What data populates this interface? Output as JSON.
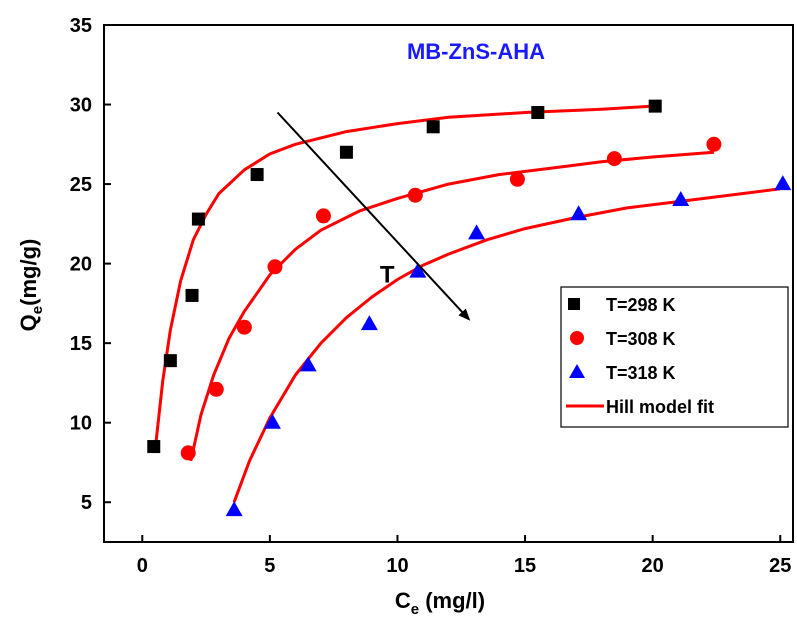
{
  "chart_data": {
    "type": "scatter",
    "title": "MB-ZnS-AHA",
    "title_color": "#1a1aff",
    "xlabel": "C",
    "xlabel_sub": "e",
    "xlabel_unit": " (mg/l)",
    "ylabel": "Q",
    "ylabel_sub": "e",
    "ylabel_unit": "(mg/g)",
    "xlim": [
      -1.5,
      25.5
    ],
    "ylim": [
      2.5,
      35
    ],
    "xticks": [
      0,
      5,
      10,
      15,
      20,
      25
    ],
    "yticks": [
      5,
      10,
      15,
      20,
      25,
      30,
      35
    ],
    "grid": false,
    "legend_position": "right",
    "series": [
      {
        "name": "T=298 K",
        "marker": "square",
        "color": "#000000",
        "x": [
          0.45,
          1.1,
          1.95,
          2.2,
          4.5,
          8.0,
          11.4,
          15.5,
          20.1
        ],
        "y": [
          8.5,
          13.9,
          18.0,
          22.8,
          25.6,
          27.0,
          28.6,
          29.5,
          29.9
        ]
      },
      {
        "name": "T=308 K",
        "marker": "circle",
        "color": "#ff0000",
        "x": [
          1.8,
          2.9,
          4.0,
          5.2,
          7.1,
          10.7,
          14.7,
          18.5,
          22.4
        ],
        "y": [
          8.1,
          12.1,
          16.0,
          19.8,
          23.0,
          24.3,
          25.3,
          26.6,
          27.5
        ]
      },
      {
        "name": "T=318 K",
        "marker": "triangle",
        "color": "#0000ff",
        "x": [
          3.6,
          5.1,
          6.5,
          8.9,
          10.8,
          13.1,
          17.1,
          21.1,
          25.1
        ],
        "y": [
          4.5,
          10.0,
          13.6,
          16.2,
          19.5,
          21.9,
          23.1,
          24.0,
          25.0
        ]
      },
      {
        "name": "Hill model fit",
        "type": "line",
        "color": "#ff0000",
        "curves": [
          {
            "x": [
              0.5,
              0.8,
              1.1,
              1.5,
              2.0,
              2.5,
              3.0,
              4.0,
              5.0,
              6.0,
              8.0,
              10.0,
              12.0,
              15.0,
              18.0,
              20.0
            ],
            "y": [
              8.2,
              12.6,
              15.8,
              18.9,
              21.5,
              23.1,
              24.4,
              25.9,
              26.9,
              27.5,
              28.3,
              28.8,
              29.2,
              29.5,
              29.7,
              29.9
            ]
          },
          {
            "x": [
              1.9,
              2.3,
              2.8,
              3.4,
              4.0,
              5.0,
              6.0,
              7.0,
              8.5,
              10.0,
              12.0,
              14.0,
              16.0,
              18.0,
              20.0,
              22.4
            ],
            "y": [
              7.6,
              10.5,
              13.0,
              15.3,
              17.0,
              19.3,
              20.9,
              22.1,
              23.3,
              24.1,
              25.0,
              25.6,
              26.0,
              26.4,
              26.7,
              27.0
            ]
          },
          {
            "x": [
              3.6,
              4.2,
              5.0,
              6.0,
              7.0,
              8.0,
              9.0,
              10.0,
              11.0,
              12.0,
              13.5,
              15.0,
              17.0,
              19.0,
              21.0,
              23.0,
              25.0
            ],
            "y": [
              5.0,
              7.6,
              10.3,
              13.0,
              15.0,
              16.6,
              17.9,
              19.0,
              19.9,
              20.6,
              21.5,
              22.2,
              22.9,
              23.5,
              23.9,
              24.3,
              24.7
            ]
          }
        ]
      }
    ],
    "annotations": [
      {
        "type": "arrow",
        "from": [
          5.3,
          29.5
        ],
        "to": [
          12.8,
          16.5
        ],
        "color": "#000000"
      },
      {
        "type": "text",
        "text": "T",
        "at": [
          9.6,
          18.8
        ]
      }
    ]
  }
}
